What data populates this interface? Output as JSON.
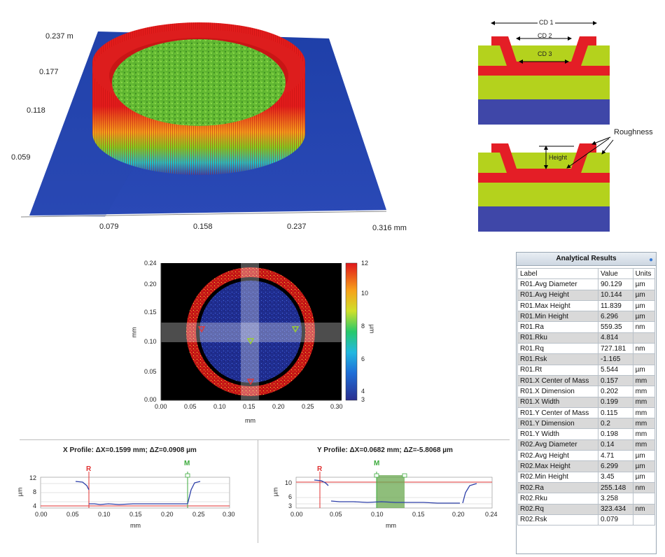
{
  "surface3d": {
    "z_ticks": [
      "0.237 m",
      "0.177",
      "0.118",
      "0.059"
    ],
    "x_ticks": [
      "0.079",
      "0.158",
      "0.237",
      "0.316 mm"
    ]
  },
  "diagram": {
    "cd1": "CD 1",
    "cd2": "CD 2",
    "cd3": "CD 3",
    "height": "Height",
    "roughness": "Roughness"
  },
  "heatmap": {
    "y_ticks": [
      "0.24",
      "0.20",
      "0.15",
      "0.10",
      "0.05",
      "0.00"
    ],
    "x_ticks": [
      "0.00",
      "0.05",
      "0.10",
      "0.15",
      "0.20",
      "0.25",
      "0.30"
    ],
    "xlabel": "mm",
    "ylabel": "mm",
    "colorbar_ticks": [
      "12",
      "10",
      "8",
      "6",
      "4",
      "3"
    ],
    "colorbar_unit": "µm"
  },
  "x_profile": {
    "title": "X Profile: ΔX=0.1599 mm; ΔZ=0.0908 µm",
    "marker_r": "R",
    "marker_m": "M",
    "y_ticks": [
      "12",
      "8",
      "4"
    ],
    "ylabel": "µm",
    "x_ticks": [
      "0.00",
      "0.05",
      "0.10",
      "0.15",
      "0.20",
      "0.25",
      "0.30"
    ],
    "xlabel": "mm"
  },
  "y_profile": {
    "title": "Y Profile: ΔX=0.0682 mm; ΔZ=-5.8068 µm",
    "marker_r": "R",
    "marker_m": "M",
    "y_ticks": [
      "10",
      "6",
      "3"
    ],
    "ylabel": "µm",
    "x_ticks": [
      "0.00",
      "0.05",
      "0.10",
      "0.15",
      "0.20",
      "0.24"
    ],
    "xlabel": "mm"
  },
  "results": {
    "title": "Analytical Results",
    "columns": [
      "Label",
      "Value",
      "Units"
    ],
    "rows": [
      [
        "R01.Avg Diameter",
        "90.129",
        "µm"
      ],
      [
        "R01.Avg Height",
        "10.144",
        "µm"
      ],
      [
        "R01.Max Height",
        "11.839",
        "µm"
      ],
      [
        "R01.Min Height",
        "6.296",
        "µm"
      ],
      [
        "R01.Ra",
        "559.35",
        "nm"
      ],
      [
        "R01.Rku",
        "4.814",
        ""
      ],
      [
        "R01.Rq",
        "727.181",
        "nm"
      ],
      [
        "R01.Rsk",
        "-1.165",
        ""
      ],
      [
        "R01.Rt",
        "5.544",
        "µm"
      ],
      [
        "R01.X Center of Mass",
        "0.157",
        "mm"
      ],
      [
        "R01.X Dimension",
        "0.202",
        "mm"
      ],
      [
        "R01.X Width",
        "0.199",
        "mm"
      ],
      [
        "R01.Y Center of Mass",
        "0.115",
        "mm"
      ],
      [
        "R01.Y Dimension",
        "0.2",
        "mm"
      ],
      [
        "R01.Y Width",
        "0.198",
        "mm"
      ],
      [
        "R02.Avg Diameter",
        "0.14",
        "mm"
      ],
      [
        "R02.Avg Height",
        "4.71",
        "µm"
      ],
      [
        "R02.Max Height",
        "6.299",
        "µm"
      ],
      [
        "R02.Min Height",
        "3.45",
        "µm"
      ],
      [
        "R02.Ra",
        "255.148",
        "nm"
      ],
      [
        "R02.Rku",
        "3.258",
        ""
      ],
      [
        "R02.Rq",
        "323.434",
        "nm"
      ],
      [
        "R02.Rsk",
        "0.079",
        ""
      ]
    ]
  }
}
